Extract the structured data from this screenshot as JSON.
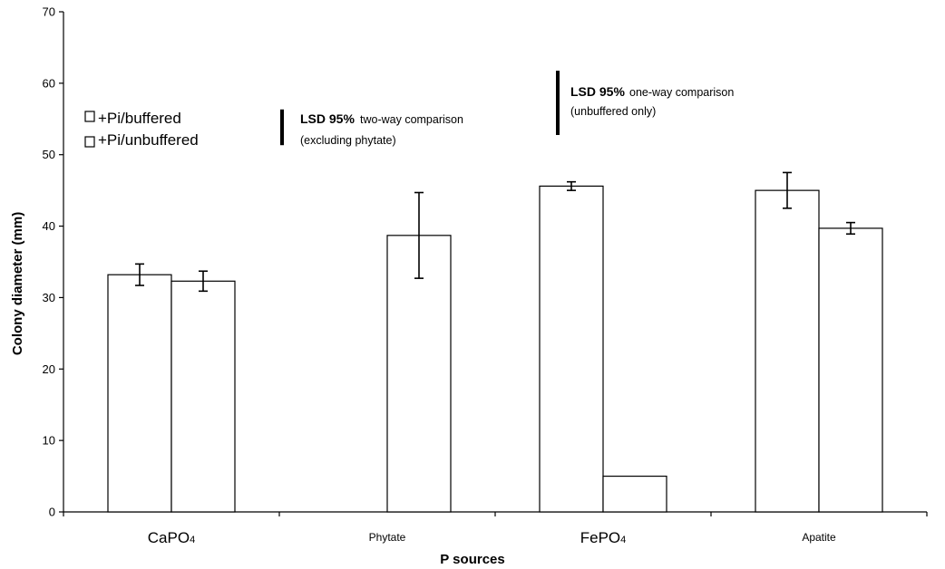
{
  "chart_data": {
    "type": "bar",
    "categories": [
      "CaPO4",
      "Phytate",
      "FePO4",
      "Apatite"
    ],
    "category_labels": [
      {
        "main": "CaPO",
        "sub": "4"
      },
      {
        "main": "Phytate",
        "sub": ""
      },
      {
        "main": "FePO",
        "sub": "4"
      },
      {
        "main": "Apatite",
        "sub": ""
      }
    ],
    "series": [
      {
        "name": "+Pi/buffered",
        "values": [
          33.2,
          null,
          45.6,
          45.0
        ],
        "errors": [
          1.5,
          null,
          0.6,
          2.5
        ]
      },
      {
        "name": "+Pi/unbuffered",
        "values": [
          32.3,
          38.7,
          5.0,
          39.7
        ],
        "errors": [
          1.4,
          6.0,
          null,
          0.8
        ]
      }
    ],
    "xlabel": "P sources",
    "ylabel": "Colony diameter (mm)",
    "ylim": [
      0,
      70
    ],
    "yticks": [
      "0",
      "10",
      "20",
      "30",
      "40",
      "50",
      "60",
      "70"
    ],
    "grid": false,
    "legend_placement": "top-left",
    "annotations": [
      {
        "bold": "LSD 95%",
        "text": "two-way comparison",
        "text2": "(excluding phytate)",
        "bar_value": 5.0
      },
      {
        "bold": "LSD 95%",
        "text": "one-way comparison",
        "text2": "(unbuffered only)",
        "bar_value": 9.0
      }
    ]
  }
}
